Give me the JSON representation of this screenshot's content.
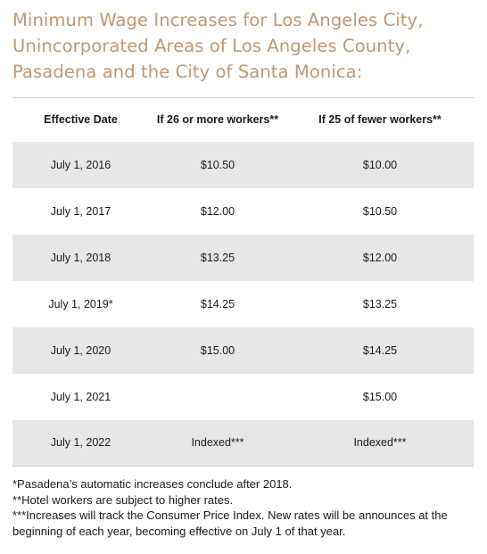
{
  "title": {
    "line1": "Minimum Wage Increases for Los Angeles City,",
    "line2": "Unincorporated Areas of Los Angeles County,",
    "line3": "Pasadena and the City of Santa Monica:"
  },
  "table": {
    "headers": [
      "Effective Date",
      "If 26 or more workers**",
      "If 25 of fewer workers**"
    ],
    "rows": [
      [
        "July 1, 2016",
        "$10.50",
        "$10.00"
      ],
      [
        "July 1, 2017",
        "$12.00",
        "$10.50"
      ],
      [
        "July 1, 2018",
        "$13.25",
        "$12.00"
      ],
      [
        "July 1, 2019*",
        "$14.25",
        "$13.25"
      ],
      [
        "July 1, 2020",
        "$15.00",
        "$14.25"
      ],
      [
        "July 1, 2021",
        "",
        "$15.00"
      ],
      [
        "July 1, 2022",
        "Indexed***",
        "Indexed***"
      ]
    ]
  },
  "notes": [
    "*Pasadena’s automatic increases conclude after 2018.",
    "**Hotel workers are subject to higher rates.",
    "***Increases will track the Consumer Price Index. New rates will be announces at the beginning of each year, becoming effective on July 1 of that year."
  ]
}
